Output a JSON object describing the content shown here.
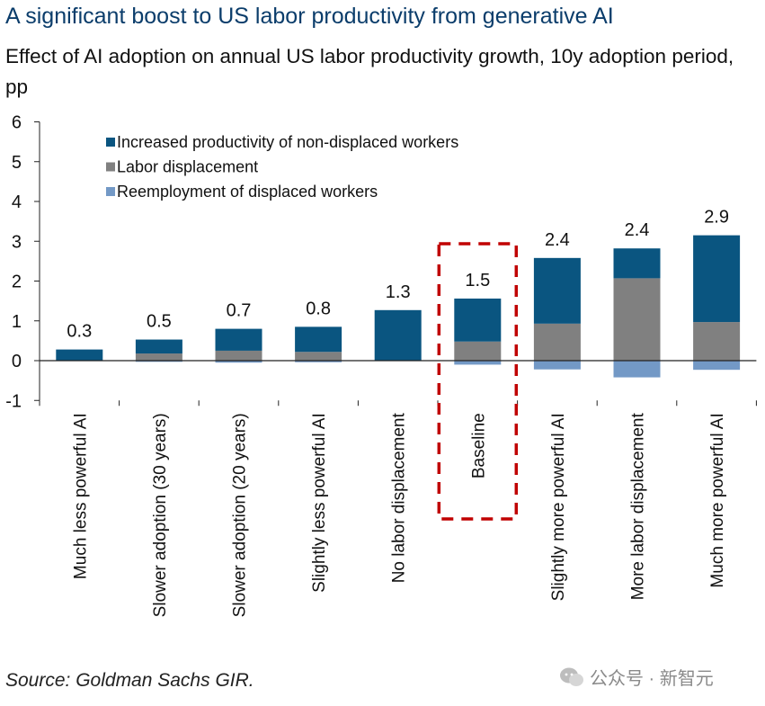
{
  "title": "A significant boost to US labor productivity from generative AI",
  "subtitle": "Effect of AI adoption on annual US labor productivity growth, 10y adoption period, pp",
  "source": "Source: Goldman Sachs GIR.",
  "watermark": "公众号 · 新智元",
  "colors": {
    "increased": "#0a5580",
    "displacement": "#808080",
    "reemployment": "#7399c6",
    "highlight": "#c00000"
  },
  "chart_data": {
    "type": "bar",
    "stacked": true,
    "categories": [
      "Much less powerful AI",
      "Slower adoption (30 years)",
      "Slower adoption (20 years)",
      "Slightly less powerful AI",
      "No labor displacement",
      "Baseline",
      "Slightly more powerful AI",
      "More labor displacement",
      "Much more powerful AI"
    ],
    "series": [
      {
        "name": "Increased productivity of non-displaced workers",
        "values": [
          0.28,
          0.35,
          0.55,
          0.63,
          1.27,
          1.08,
          1.65,
          0.75,
          2.18
        ]
      },
      {
        "name": "Labor displacement",
        "values": [
          0.0,
          0.18,
          0.25,
          0.22,
          0.0,
          0.48,
          0.93,
          2.07,
          0.97
        ]
      },
      {
        "name": "Reemployment of displaced workers",
        "values": [
          0.0,
          -0.03,
          -0.05,
          -0.04,
          0.0,
          -0.1,
          -0.22,
          -0.42,
          -0.23
        ]
      }
    ],
    "totals": [
      "0.3",
      "0.5",
      "0.7",
      "0.8",
      "1.3",
      "1.5",
      "2.4",
      "2.4",
      "2.9"
    ],
    "highlighted_category": "Baseline",
    "ylim": [
      -1,
      6
    ],
    "yticks": [
      "-1",
      "0",
      "1",
      "2",
      "3",
      "4",
      "5",
      "6"
    ],
    "legend_position": "top-left",
    "xlabel": "",
    "ylabel": ""
  }
}
